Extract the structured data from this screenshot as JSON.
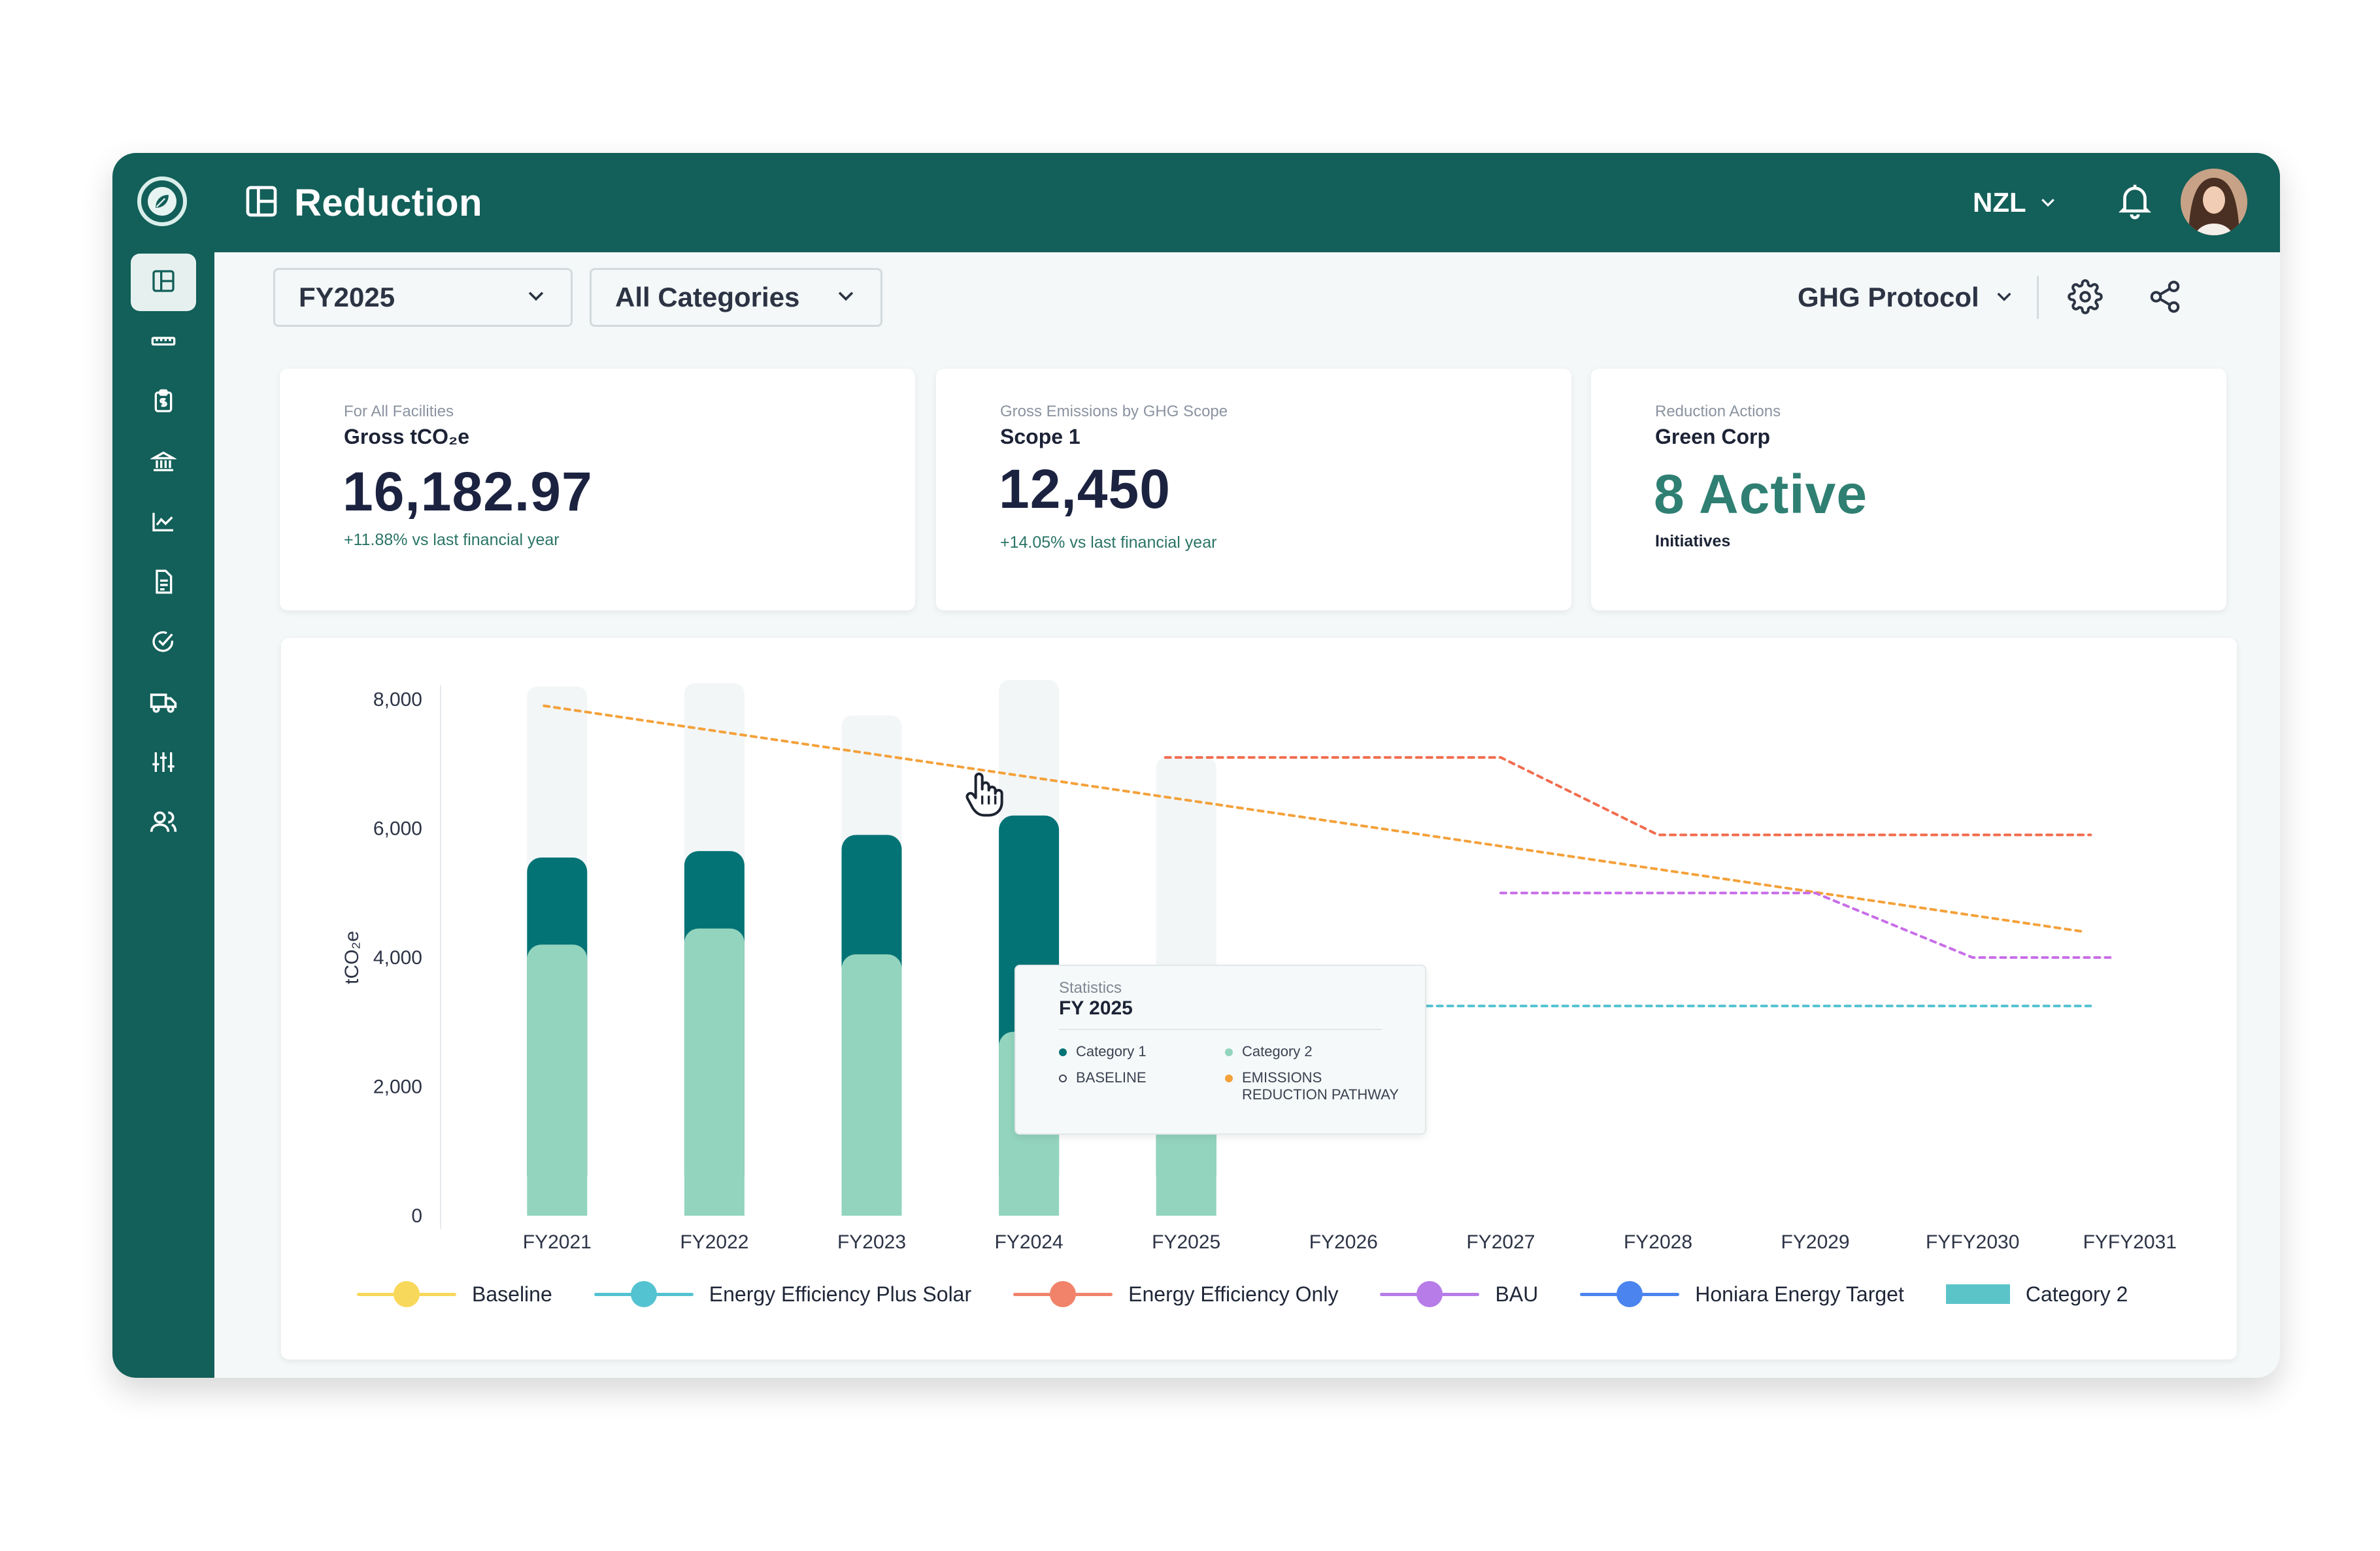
{
  "app": {
    "title": "Reduction"
  },
  "header": {
    "region": "NZL"
  },
  "sidebar": {
    "items": [
      {
        "icon": "dashboard-icon",
        "active": true
      },
      {
        "icon": "ruler-icon"
      },
      {
        "icon": "finance-clipboard-icon"
      },
      {
        "icon": "bank-icon"
      },
      {
        "icon": "trend-chart-icon"
      },
      {
        "icon": "document-icon"
      },
      {
        "icon": "check-circle-icon"
      },
      {
        "icon": "truck-icon"
      },
      {
        "icon": "sliders-icon"
      },
      {
        "icon": "users-icon"
      }
    ]
  },
  "filters": {
    "year": "FY2025",
    "category": "All Categories",
    "protocol": "GHG Protocol"
  },
  "cards": [
    {
      "eyebrow": "For All Facilities",
      "title": "Gross tCO₂e",
      "value": "16,182.97",
      "delta": "+11.88% vs last financial year"
    },
    {
      "eyebrow": "Gross Emissions by GHG Scope",
      "title": "Scope 1",
      "value": "12,450",
      "delta": "+14.05% vs last financial year"
    },
    {
      "eyebrow": "Reduction Actions",
      "title": "Green Corp",
      "value": "8 Active",
      "sub": "Initiatives"
    }
  ],
  "colors": {
    "brand": "#135f59",
    "category1": "#047376",
    "category2": "#93d4be",
    "emissions_pathway": "#f4a13a",
    "energy_efficiency_only": "#f26c4f",
    "bau": "#c86ee8",
    "energy_efficiency_plus_solar": "#54c3d1"
  },
  "chart_data": {
    "type": "bar",
    "ylabel": "tCO₂e",
    "ylim": [
      0,
      8000
    ],
    "yticks": [
      "8,000",
      "6,000",
      "4,000",
      "2,000",
      "0"
    ],
    "categories": [
      "FY2021",
      "FY2022",
      "FY2023",
      "FY2024",
      "FY2025",
      "FY2026",
      "FY2027",
      "FY2028",
      "FY2029",
      "FYFY2030",
      "FYFY2031"
    ],
    "stacked": true,
    "series": [
      {
        "name": "Category 2",
        "values": [
          4200,
          4450,
          4050,
          2850,
          2500,
          null,
          null,
          null,
          null,
          null,
          null
        ]
      },
      {
        "name": "Category 1",
        "values": [
          1350,
          1200,
          1850,
          3350,
          900,
          null,
          null,
          null,
          null,
          null,
          null
        ]
      }
    ],
    "background_bars": [
      8200,
      8250,
      7750,
      8300,
      7100,
      null,
      null,
      null,
      null,
      null,
      null
    ],
    "lines": [
      {
        "name": "Emissions Reduction Pathway",
        "style": "dotted",
        "x_from": "FY2021",
        "y_from": 7900,
        "x_to": "FYFY2031",
        "y_to": 4400
      },
      {
        "name": "Energy Efficiency Only",
        "style": "dotted",
        "points": [
          [
            "FY2025",
            7100
          ],
          [
            "FY2027",
            7100
          ],
          [
            "FY2028",
            5900
          ],
          [
            "FYFY2031",
            5900
          ]
        ]
      },
      {
        "name": "BAU",
        "style": "dotted",
        "points": [
          [
            "FY2027",
            5000
          ],
          [
            "FY2029",
            5000
          ],
          [
            "FYFY2030",
            4000
          ],
          [
            "FYFY2031",
            4000
          ]
        ]
      },
      {
        "name": "Energy Efficiency Plus Solar",
        "style": "dotted",
        "points": [
          [
            "FY2025",
            3250
          ],
          [
            "FYFY2031",
            3250
          ]
        ]
      }
    ],
    "grid": false,
    "legend_position": "bottom",
    "legend": [
      {
        "label": "Baseline",
        "color": "#f8d85a",
        "kind": "line"
      },
      {
        "label": "Energy Efficiency Plus Solar",
        "color": "#54c3d1",
        "kind": "line"
      },
      {
        "label": "Energy Efficiency Only",
        "color": "#f0836a",
        "kind": "line"
      },
      {
        "label": "BAU",
        "color": "#b77ce8",
        "kind": "line"
      },
      {
        "label": "Honiara Energy Target",
        "color": "#4b84ef",
        "kind": "line"
      },
      {
        "label": "Category 2",
        "color": "#5bc4c9",
        "kind": "rect"
      }
    ]
  },
  "tooltip": {
    "eyebrow": "Statistics",
    "title": "FY 2025",
    "items": [
      {
        "label": "Category 1",
        "color": "#047376"
      },
      {
        "label": "Category 2",
        "color": "#93d4be"
      },
      {
        "label": "BASELINE",
        "color": "#ffffff"
      },
      {
        "label": "EMISSIONS\nREDUCTION PATHWAY",
        "color": "#f4a13a"
      }
    ]
  }
}
